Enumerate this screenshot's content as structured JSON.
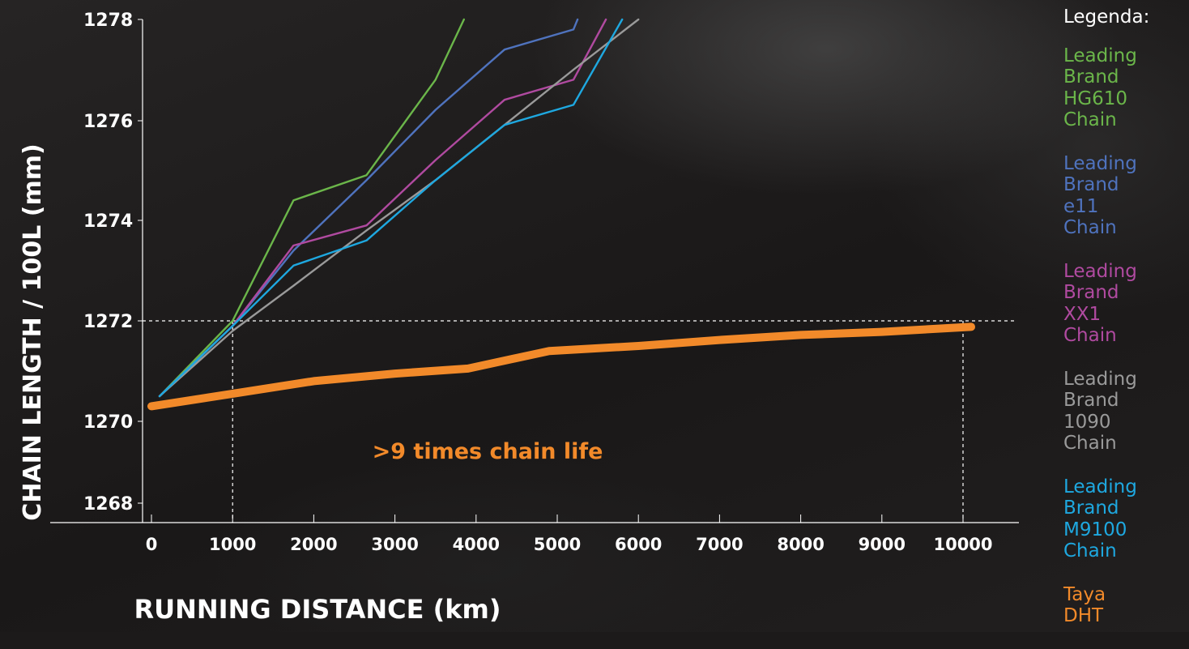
{
  "chart_data": {
    "type": "line",
    "xlabel": "RUNNING DISTANCE (km)",
    "ylabel": "CHAIN LENGTH / 100L (mm)",
    "xlim": [
      0,
      10000
    ],
    "ylim": [
      1268,
      1278
    ],
    "x_ticks": [
      "0",
      "1000",
      "2000",
      "3000",
      "4000",
      "5000",
      "6000",
      "7000",
      "8000",
      "9000",
      "10000"
    ],
    "y_ticks": [
      "1268",
      "1270",
      "1272",
      "1274",
      "1276",
      "1278"
    ],
    "reference_lines": {
      "y": 1272,
      "x": [
        1000,
        10000
      ]
    },
    "annotation": ">9 times chain life",
    "legend_title": "Legenda:",
    "legend_position": "right",
    "series": [
      {
        "name": "Leading Brand HG610 Chain",
        "color": "#6bb64a",
        "x": [
          100,
          1000,
          1750,
          2650,
          3500,
          3850
        ],
        "y": [
          1270.5,
          1272.0,
          1274.4,
          1274.9,
          1276.8,
          1278.0
        ]
      },
      {
        "name": "Leading Brand e11 Chain",
        "color": "#4f73be",
        "x": [
          100,
          1000,
          1750,
          2650,
          3500,
          4350,
          5200,
          5250
        ],
        "y": [
          1270.5,
          1271.9,
          1273.4,
          1274.8,
          1276.2,
          1277.4,
          1277.8,
          1278.0
        ]
      },
      {
        "name": "Leading Brand XX1 Chain",
        "color": "#b04aa0",
        "x": [
          100,
          1000,
          1750,
          2650,
          3500,
          4350,
          5200,
          5600
        ],
        "y": [
          1270.5,
          1271.9,
          1273.5,
          1273.9,
          1275.2,
          1276.4,
          1276.8,
          1278.0
        ]
      },
      {
        "name": "Leading Brand 1090 Chain",
        "color": "#9a9a9a",
        "x": [
          100,
          1000,
          1750,
          2650,
          3500,
          4350,
          5200,
          6000
        ],
        "y": [
          1270.5,
          1271.8,
          1272.7,
          1273.8,
          1274.8,
          1275.9,
          1277.0,
          1278.0
        ]
      },
      {
        "name": "Leading Brand M9100 Chain",
        "color": "#1ea8e0",
        "x": [
          100,
          1000,
          1750,
          2650,
          3500,
          4350,
          5200,
          5800
        ],
        "y": [
          1270.5,
          1271.9,
          1273.1,
          1273.6,
          1274.8,
          1275.9,
          1276.3,
          1278.0
        ]
      },
      {
        "name": "Taya DHT",
        "color": "#f28a2a",
        "x": [
          0,
          1000,
          2000,
          3000,
          3900,
          4900,
          6000,
          7000,
          8000,
          9000,
          10100
        ],
        "y": [
          1270.3,
          1270.55,
          1270.8,
          1270.95,
          1271.05,
          1271.4,
          1271.5,
          1271.62,
          1271.72,
          1271.78,
          1271.88
        ]
      }
    ]
  }
}
